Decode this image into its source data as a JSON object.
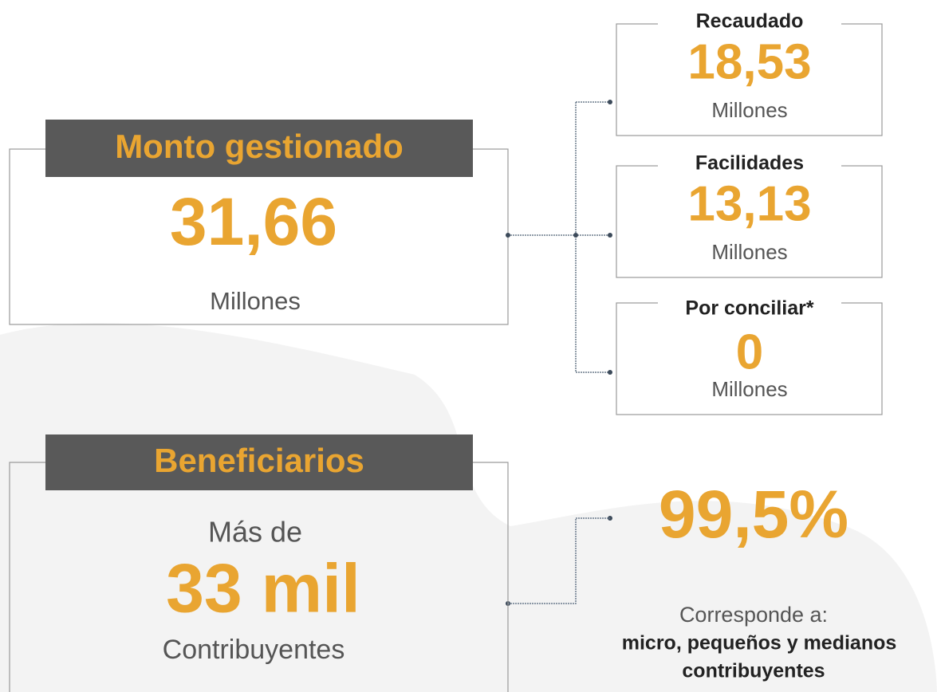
{
  "summary": {
    "title": "Monto gestionado",
    "value": "31,66",
    "unit": "Millones"
  },
  "breakdown": [
    {
      "label": "Recaudado",
      "value": "18,53",
      "unit": "Millones"
    },
    {
      "label": "Facilidades",
      "value": "13,13",
      "unit": "Millones"
    },
    {
      "label": "Por conciliar*",
      "value": "0",
      "unit": "Millones"
    }
  ],
  "beneficiaries": {
    "title": "Beneficiarios",
    "prefix": "Más de",
    "value": "33 mil",
    "unit": "Contribuyentes"
  },
  "share": {
    "value": "99,5%",
    "description": "Corresponde a:",
    "detail_lines": [
      "micro, pequeños y medianos",
      "contribuyentes"
    ]
  }
}
